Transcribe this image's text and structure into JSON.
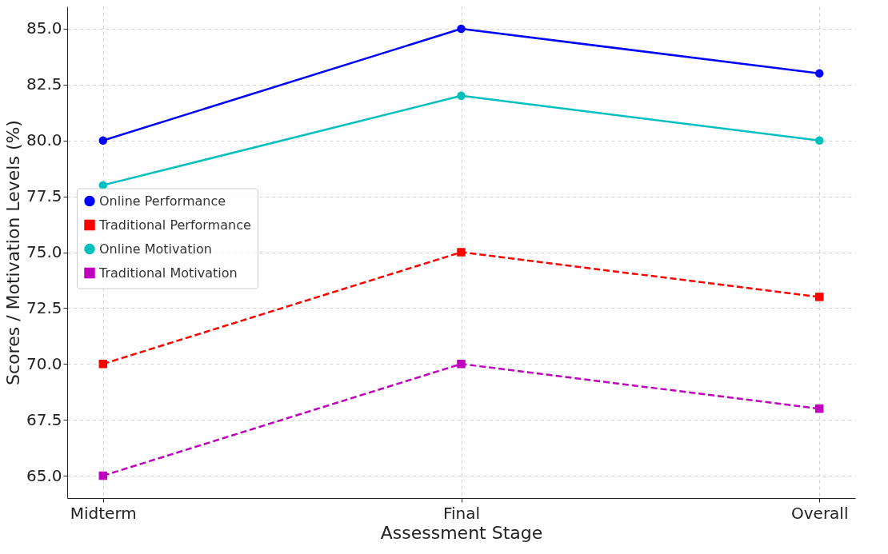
{
  "chart_data": {
    "type": "line",
    "xlabel": "Assessment Stage",
    "ylabel": "Scores / Motivation Levels (%)",
    "categories": [
      "Midterm",
      "Final",
      "Overall"
    ],
    "series": [
      {
        "name": "Online Performance",
        "color": "#0000ff",
        "values": [
          80,
          85,
          83
        ],
        "marker": "circle",
        "line_style": "solid"
      },
      {
        "name": "Traditional Performance",
        "color": "#ff0000",
        "values": [
          70,
          75,
          73
        ],
        "marker": "square",
        "line_style": "dashed"
      },
      {
        "name": "Online Motivation",
        "color": "#00bfbf",
        "values": [
          78,
          82,
          80
        ],
        "marker": "circle",
        "line_style": "solid"
      },
      {
        "name": "Traditional Motivation",
        "color": "#bf00bf",
        "values": [
          65,
          70,
          68
        ],
        "marker": "square",
        "line_style": "dashed"
      }
    ],
    "ylim": [
      64.0,
      86.0
    ],
    "yticks": [
      {
        "value": 65,
        "label": "65.0"
      },
      {
        "value": 67.5,
        "label": "67.5"
      },
      {
        "value": 70,
        "label": "70.0"
      },
      {
        "value": 72.5,
        "label": "72.5"
      },
      {
        "value": 75,
        "label": "75.0"
      },
      {
        "value": 77.5,
        "label": "77.5"
      },
      {
        "value": 80,
        "label": "80.0"
      },
      {
        "value": 82.5,
        "label": "82.5"
      },
      {
        "value": 85,
        "label": "85.0"
      }
    ],
    "grid": true,
    "legend": "left"
  }
}
